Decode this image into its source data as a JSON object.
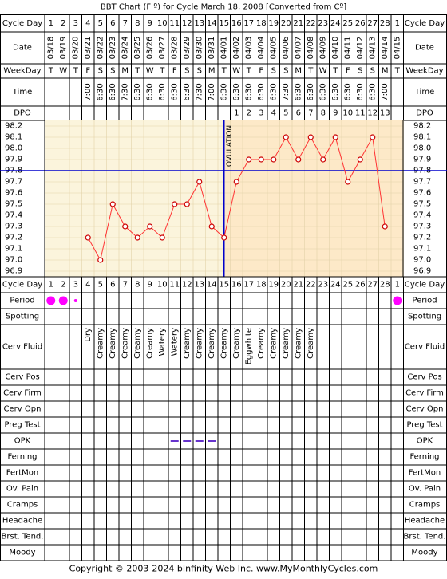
{
  "title": "BBT Chart (F º) for Cycle March 18, 2008  [Converted from Cº]",
  "row_labels": {
    "cycle_day": "Cycle Day",
    "date": "Date",
    "weekday": "WeekDay",
    "time": "Time",
    "dpo": "DPO"
  },
  "cycle_days": [
    "1",
    "2",
    "3",
    "4",
    "5",
    "6",
    "7",
    "8",
    "9",
    "10",
    "11",
    "12",
    "13",
    "14",
    "15",
    "16",
    "17",
    "18",
    "19",
    "20",
    "21",
    "22",
    "23",
    "24",
    "25",
    "26",
    "27",
    "28",
    "1"
  ],
  "dates": [
    "03/18",
    "03/19",
    "03/20",
    "03/21",
    "03/22",
    "03/23",
    "03/24",
    "03/25",
    "03/26",
    "03/27",
    "03/28",
    "03/29",
    "03/30",
    "03/31",
    "04/01",
    "04/02",
    "04/03",
    "04/04",
    "04/05",
    "04/06",
    "04/07",
    "04/08",
    "04/09",
    "04/10",
    "04/11",
    "04/12",
    "04/13",
    "04/14",
    "04/15"
  ],
  "weekdays": [
    "T",
    "W",
    "T",
    "F",
    "S",
    "S",
    "M",
    "T",
    "W",
    "T",
    "F",
    "S",
    "S",
    "M",
    "T",
    "W",
    "T",
    "F",
    "S",
    "S",
    "M",
    "T",
    "W",
    "T",
    "F",
    "S",
    "S",
    "M",
    "T"
  ],
  "times": [
    "",
    "",
    "",
    "7:00",
    "6:30",
    "6:30",
    "7:30",
    "6:30",
    "6:30",
    "6:30",
    "6:30",
    "6:30",
    "7:30",
    "7:00",
    "6:30",
    "6:30",
    "6:30",
    "6:30",
    "6:30",
    "7:30",
    "6:30",
    "6:30",
    "6:30",
    "6:30",
    "6:30",
    "6:30",
    "6:30",
    "7:00",
    ""
  ],
  "dpo": [
    "",
    "",
    "",
    "",
    "",
    "",
    "",
    "",
    "",
    "",
    "",
    "",
    "",
    "",
    "",
    "1",
    "2",
    "3",
    "4",
    "5",
    "6",
    "7",
    "8",
    "9",
    "10",
    "11",
    "12",
    "13",
    ""
  ],
  "ovulation_label": "OVULATION",
  "temp_labels": [
    "98.2",
    "98.1",
    "98.0",
    "97.9",
    "97.8",
    "97.7",
    "97.6",
    "97.5",
    "97.4",
    "97.3",
    "97.2",
    "97.1",
    "97.0",
    "96.9"
  ],
  "chart_data": {
    "type": "line",
    "title": "BBT Chart (F º) for Cycle March 18, 2008  [Converted from Cº]",
    "xlabel": "Cycle Day",
    "ylabel": "",
    "ylim": [
      96.9,
      98.2
    ],
    "x": [
      4,
      5,
      6,
      7,
      8,
      9,
      10,
      11,
      12,
      13,
      14,
      15,
      16,
      17,
      18,
      19,
      20,
      21,
      22,
      23,
      24,
      25,
      26,
      27,
      28
    ],
    "y": [
      97.2,
      97.0,
      97.5,
      97.3,
      97.2,
      97.3,
      97.2,
      97.5,
      97.5,
      97.7,
      97.3,
      97.2,
      97.7,
      97.9,
      97.9,
      97.9,
      98.1,
      97.9,
      98.1,
      97.9,
      98.1,
      97.7,
      97.9,
      98.1,
      97.3
    ],
    "coverline": 97.8,
    "ovulation_day": 15,
    "grid": true,
    "colors": {
      "line": "#ff3333",
      "marker": "#cc0000",
      "coverline": "#0000cc",
      "post_ovulation_bg": "#fde9c8",
      "pre_ovulation_bg": "#fbf4dc",
      "period": "#ff00ff"
    }
  },
  "lower_rows": [
    "Cycle Day",
    "Period",
    "Spotting",
    "Cerv Fluid",
    "Cerv Pos",
    "Cerv Firm",
    "Cerv Opn",
    "Preg Test",
    "OPK",
    "Ferning",
    "FertMon",
    "Ov. Pain",
    "Cramps",
    "Headache",
    "Brst. Tend.",
    "Moody"
  ],
  "period": [
    {
      "day": 1,
      "size": "large"
    },
    {
      "day": 2,
      "size": "large"
    },
    {
      "day": 3,
      "size": "small"
    },
    {
      "day": 29,
      "size": "large"
    }
  ],
  "cervical_fluid": [
    "",
    "",
    "",
    "Dry",
    "Creamy",
    "Creamy",
    "Creamy",
    "Creamy",
    "Creamy",
    "Watery",
    "Watery",
    "Creamy",
    "Creamy",
    "Creamy",
    "Creamy",
    "Creamy",
    "Eggwhite",
    "Creamy",
    "Creamy",
    "Creamy",
    "Creamy",
    "Creamy",
    "",
    "",
    "",
    "",
    "",
    "",
    ""
  ],
  "opk_dash_days": [
    11,
    12,
    13,
    14
  ],
  "footer": "Copyright © 2003-2024 bInfinity Web Inc.    www.MyMonthlyCycles.com"
}
